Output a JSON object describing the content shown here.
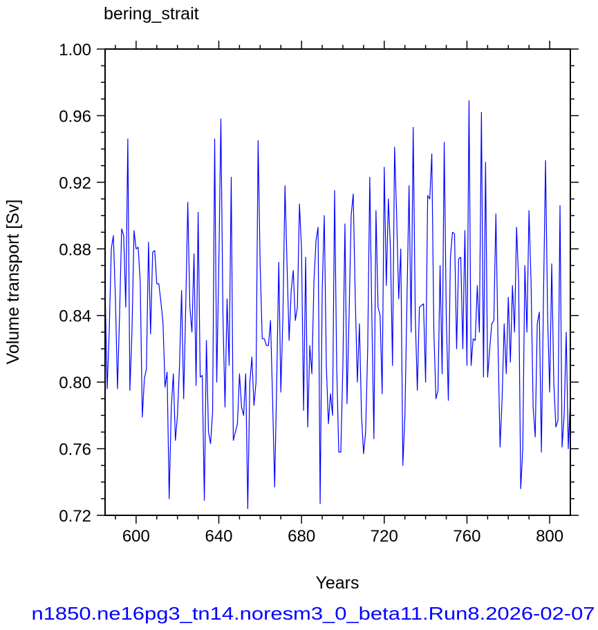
{
  "chart_data": {
    "type": "line",
    "title": "bering_strait",
    "x_label": "Years",
    "y_label": "Volume transport [Sv]",
    "annotation": "n1850.ne16pg3_tn14.noresm3_0_beta11.Run8.2026-02-07",
    "xlim": [
      585,
      810
    ],
    "ylim": [
      0.72,
      1.0
    ],
    "xticks": [
      600,
      640,
      680,
      720,
      760,
      800
    ],
    "xminorticks": [
      590,
      610,
      620,
      630,
      650,
      660,
      670,
      690,
      700,
      710,
      730,
      740,
      750,
      770,
      780,
      790
    ],
    "yticks": [
      {
        "value": 0.72,
        "label": "0.72"
      },
      {
        "value": 0.76,
        "label": "0.76"
      },
      {
        "value": 0.8,
        "label": "0.80"
      },
      {
        "value": 0.84,
        "label": "0.84"
      },
      {
        "value": 0.88,
        "label": "0.88"
      },
      {
        "value": 0.92,
        "label": "0.92"
      },
      {
        "value": 0.96,
        "label": "0.96"
      },
      {
        "value": 1.0,
        "label": "1.00"
      }
    ],
    "yminorticks": [
      0.73,
      0.74,
      0.75,
      0.77,
      0.78,
      0.79,
      0.81,
      0.82,
      0.83,
      0.85,
      0.86,
      0.87,
      0.89,
      0.9,
      0.91,
      0.93,
      0.94,
      0.95,
      0.97,
      0.98,
      0.99
    ],
    "x": [
      585,
      586,
      587,
      588,
      589,
      590,
      591,
      592,
      593,
      594,
      595,
      596,
      597,
      598,
      599,
      600,
      601,
      602,
      603,
      604,
      605,
      606,
      607,
      608,
      609,
      610,
      611,
      612,
      613,
      614,
      615,
      616,
      617,
      618,
      619,
      620,
      621,
      622,
      623,
      624,
      625,
      626,
      627,
      628,
      629,
      630,
      631,
      632,
      633,
      634,
      635,
      636,
      637,
      638,
      639,
      640,
      641,
      642,
      643,
      644,
      645,
      646,
      647,
      648,
      649,
      650,
      651,
      652,
      653,
      654,
      655,
      656,
      657,
      658,
      659,
      660,
      661,
      662,
      663,
      664,
      665,
      666,
      667,
      668,
      669,
      670,
      671,
      672,
      673,
      674,
      675,
      676,
      677,
      678,
      679,
      680,
      681,
      682,
      683,
      684,
      685,
      686,
      687,
      688,
      689,
      690,
      691,
      692,
      693,
      694,
      695,
      696,
      697,
      698,
      699,
      700,
      701,
      702,
      703,
      704,
      705,
      706,
      707,
      708,
      709,
      710,
      711,
      712,
      713,
      714,
      715,
      716,
      717,
      718,
      719,
      720,
      721,
      722,
      723,
      724,
      725,
      726,
      727,
      728,
      729,
      730,
      731,
      732,
      733,
      734,
      735,
      736,
      737,
      738,
      739,
      740,
      741,
      742,
      743,
      744,
      745,
      746,
      747,
      748,
      749,
      750,
      751,
      752,
      753,
      754,
      755,
      756,
      757,
      758,
      759,
      760,
      761,
      762,
      763,
      764,
      765,
      766,
      767,
      768,
      769,
      770,
      771,
      772,
      773,
      774,
      775,
      776,
      777,
      778,
      779,
      780,
      781,
      782,
      783,
      784,
      785,
      786,
      787,
      788,
      789,
      790,
      791,
      792,
      793,
      794,
      795,
      796,
      797,
      798,
      799,
      800,
      801,
      802,
      803,
      804,
      805,
      806,
      807,
      808,
      809,
      810
    ],
    "series": [
      {
        "name": "bering_strait",
        "color": "#0000ff",
        "values": [
          0.857,
          0.796,
          0.83,
          0.88,
          0.888,
          0.85,
          0.796,
          0.84,
          0.892,
          0.888,
          0.845,
          0.946,
          0.795,
          0.83,
          0.891,
          0.88,
          0.881,
          0.86,
          0.779,
          0.802,
          0.808,
          0.884,
          0.829,
          0.878,
          0.879,
          0.859,
          0.859,
          0.848,
          0.836,
          0.797,
          0.806,
          0.73,
          0.784,
          0.805,
          0.765,
          0.78,
          0.81,
          0.855,
          0.79,
          0.845,
          0.908,
          0.845,
          0.83,
          0.877,
          0.798,
          0.902,
          0.803,
          0.804,
          0.729,
          0.825,
          0.77,
          0.763,
          0.782,
          0.946,
          0.8,
          0.87,
          0.958,
          0.84,
          0.785,
          0.85,
          0.81,
          0.923,
          0.765,
          0.77,
          0.775,
          0.805,
          0.785,
          0.78,
          0.805,
          0.724,
          0.8,
          0.815,
          0.786,
          0.8,
          0.945,
          0.87,
          0.826,
          0.826,
          0.822,
          0.822,
          0.837,
          0.79,
          0.737,
          0.8,
          0.872,
          0.794,
          0.84,
          0.918,
          0.87,
          0.825,
          0.855,
          0.867,
          0.837,
          0.845,
          0.907,
          0.88,
          0.783,
          0.875,
          0.773,
          0.822,
          0.805,
          0.86,
          0.885,
          0.893,
          0.727,
          0.855,
          0.9,
          0.81,
          0.775,
          0.793,
          0.78,
          0.915,
          0.81,
          0.758,
          0.758,
          0.81,
          0.895,
          0.787,
          0.84,
          0.9,
          0.913,
          0.85,
          0.8,
          0.835,
          0.78,
          0.757,
          0.77,
          0.82,
          0.923,
          0.84,
          0.766,
          0.903,
          0.845,
          0.84,
          0.793,
          0.929,
          0.858,
          0.91,
          0.88,
          0.81,
          0.941,
          0.9,
          0.85,
          0.88,
          0.75,
          0.78,
          0.85,
          0.918,
          0.83,
          0.953,
          0.84,
          0.795,
          0.845,
          0.846,
          0.847,
          0.8,
          0.912,
          0.91,
          0.937,
          0.83,
          0.79,
          0.795,
          0.87,
          0.805,
          0.944,
          0.84,
          0.789,
          0.875,
          0.89,
          0.889,
          0.82,
          0.874,
          0.875,
          0.82,
          0.891,
          0.81,
          0.969,
          0.81,
          0.826,
          0.825,
          0.858,
          0.83,
          0.962,
          0.803,
          0.932,
          0.803,
          0.82,
          0.835,
          0.837,
          0.901,
          0.825,
          0.761,
          0.79,
          0.835,
          0.805,
          0.851,
          0.812,
          0.858,
          0.83,
          0.893,
          0.86,
          0.736,
          0.76,
          0.87,
          0.83,
          0.903,
          0.86,
          0.785,
          0.767,
          0.835,
          0.842,
          0.758,
          0.85,
          0.933,
          0.84,
          0.794,
          0.871,
          0.8,
          0.773,
          0.777,
          0.906,
          0.761,
          0.78,
          0.83,
          0.76,
          0.79
        ]
      }
    ]
  }
}
